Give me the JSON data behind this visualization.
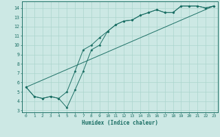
{
  "xlabel": "Humidex (Indice chaleur)",
  "background_color": "#cce8e4",
  "grid_color": "#aad4cc",
  "line_color": "#1a6e64",
  "xlim": [
    -0.5,
    23.5
  ],
  "ylim": [
    2.8,
    14.7
  ],
  "xticks": [
    0,
    1,
    2,
    3,
    4,
    5,
    6,
    7,
    8,
    9,
    10,
    11,
    12,
    13,
    14,
    15,
    16,
    17,
    18,
    19,
    20,
    21,
    22,
    23
  ],
  "yticks": [
    3,
    4,
    5,
    6,
    7,
    8,
    9,
    10,
    11,
    12,
    13,
    14
  ],
  "line1_x": [
    0,
    1,
    2,
    3,
    4,
    5,
    6,
    7,
    8,
    9,
    10,
    11,
    12,
    13,
    14,
    15,
    16,
    17,
    18,
    19,
    20,
    21,
    22,
    23
  ],
  "line1_y": [
    5.5,
    4.5,
    4.3,
    4.5,
    4.3,
    3.3,
    5.2,
    7.2,
    9.5,
    10.0,
    11.5,
    12.2,
    12.6,
    12.7,
    13.2,
    13.5,
    13.8,
    13.5,
    13.5,
    14.2,
    14.2,
    14.2,
    14.0,
    14.2
  ],
  "line2_x": [
    0,
    1,
    2,
    3,
    4,
    5,
    6,
    7,
    8,
    9,
    10,
    11,
    12,
    13,
    14,
    15,
    16,
    17,
    18,
    19,
    20,
    21,
    22,
    23
  ],
  "line2_y": [
    5.5,
    4.5,
    4.3,
    4.5,
    4.3,
    5.0,
    7.2,
    9.5,
    10.0,
    10.8,
    11.5,
    12.2,
    12.6,
    12.7,
    13.2,
    13.5,
    13.8,
    13.5,
    13.5,
    14.2,
    14.2,
    14.2,
    14.0,
    14.2
  ],
  "line3_x": [
    0,
    23
  ],
  "line3_y": [
    5.5,
    14.2
  ]
}
